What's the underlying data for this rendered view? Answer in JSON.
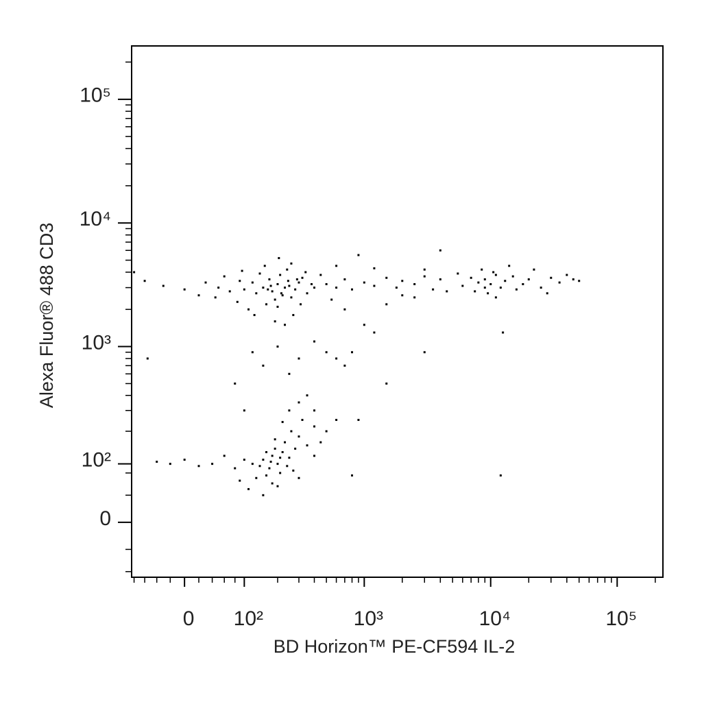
{
  "chart_data": {
    "type": "scatter",
    "xlabel": "BD Horizon™ PE-CF594 IL-2",
    "ylabel": "Alexa Fluor® 488 CD3",
    "xscale": "biexponential",
    "yscale": "biexponential",
    "xlim": [
      -85,
      230000
    ],
    "ylim": [
      -92,
      270000
    ],
    "xticks": [
      0,
      {
        "value": 100,
        "label": "10²"
      },
      {
        "value": 1000,
        "label": "10³"
      },
      {
        "value": 10000,
        "label": "10⁴"
      },
      {
        "value": 100000,
        "label": "10⁵"
      }
    ],
    "yticks": [
      0,
      {
        "value": 100,
        "label": "10²"
      },
      {
        "value": 1000,
        "label": "10³"
      },
      {
        "value": 10000,
        "label": "10⁴"
      },
      {
        "value": 100000,
        "label": "10⁵"
      }
    ],
    "xminorticks": [
      -80,
      -60,
      -40,
      -20,
      20,
      40,
      60,
      80,
      200,
      300,
      400,
      500,
      600,
      700,
      800,
      900,
      2000,
      3000,
      4000,
      5000,
      6000,
      7000,
      8000,
      9000,
      20000,
      30000,
      40000,
      50000,
      60000,
      70000,
      80000,
      90000,
      200000
    ],
    "yminorticks": [
      -80,
      -40,
      40,
      80,
      200,
      300,
      400,
      500,
      600,
      700,
      800,
      900,
      2000,
      3000,
      4000,
      5000,
      6000,
      7000,
      8000,
      9000,
      20000,
      30000,
      40000,
      50000,
      60000,
      70000,
      80000,
      90000,
      200000
    ],
    "color": "#000000",
    "x": [
      150,
      180,
      200,
      220,
      250,
      170,
      130,
      280,
      300,
      190,
      210,
      160,
      240,
      120,
      260,
      140,
      230,
      200,
      175,
      320,
      100,
      90,
      70,
      50,
      30,
      0,
      -30,
      -60,
      20,
      110,
      350,
      380,
      270,
      310,
      155,
      205,
      260,
      95,
      400,
      190,
      230,
      125,
      85,
      60,
      45,
      340,
      290,
      215,
      165,
      245,
      500,
      600,
      700,
      800,
      1000,
      1200,
      1500,
      1800,
      2000,
      2500,
      3000,
      3500,
      4000,
      600,
      900,
      1500,
      2500,
      4000,
      700,
      1200,
      3000,
      2000,
      450,
      550,
      1000,
      8000,
      9000,
      10000,
      11000,
      12000,
      7000,
      6000,
      13000,
      15000,
      18000,
      20000,
      25000,
      30000,
      35000,
      40000,
      45000,
      9500,
      8500,
      11000,
      14000,
      7500,
      10500,
      16000,
      22000,
      28000,
      5500,
      50000,
      12500,
      4500,
      9000,
      120,
      150,
      200,
      250,
      300,
      400,
      500,
      600,
      700,
      800,
      1500,
      3000,
      80,
      100,
      400,
      600,
      900,
      500,
      1200,
      -55,
      150,
      180,
      200,
      170,
      220,
      140,
      250,
      190,
      160,
      210,
      120,
      100,
      80,
      60,
      40,
      20,
      0,
      -20,
      -40,
      230,
      260,
      300,
      280,
      320,
      350,
      400,
      180,
      130,
      110,
      90,
      240,
      270,
      300,
      200,
      150,
      190,
      220,
      250,
      300,
      350,
      400,
      450,
      160,
      175,
      210,
      800,
      12000,
      -80
    ],
    "values": [
      3000,
      2800,
      3200,
      2600,
      3100,
      3500,
      2700,
      2900,
      3300,
      2400,
      3800,
      2200,
      4200,
      3300,
      2500,
      3900,
      3000,
      2100,
      3100,
      3600,
      2900,
      3400,
      2800,
      3000,
      3300,
      2900,
      3100,
      3400,
      2600,
      2000,
      2700,
      3200,
      1800,
      2200,
      4500,
      5200,
      4700,
      4100,
      3000,
      1600,
      1500,
      1800,
      2300,
      3700,
      2500,
      4000,
      3500,
      2700,
      2900,
      3400,
      3200,
      3000,
      3500,
      2900,
      3300,
      3100,
      3600,
      3000,
      3400,
      3200,
      3700,
      2900,
      3500,
      4500,
      5500,
      2200,
      2500,
      6000,
      2000,
      4300,
      4200,
      2600,
      3800,
      2400,
      1500,
      3300,
      3500,
      3200,
      3800,
      3000,
      3600,
      3100,
      3400,
      3700,
      3200,
      3500,
      3000,
      3600,
      3300,
      3800,
      3500,
      2700,
      4200,
      2500,
      4500,
      2800,
      4000,
      2900,
      4200,
      2700,
      3900,
      3400,
      1300,
      2800,
      3000,
      900,
      700,
      1000,
      600,
      800,
      1100,
      900,
      800,
      700,
      900,
      500,
      900,
      500,
      300,
      300,
      250,
      250,
      200,
      1300,
      800,
      110,
      120,
      100,
      90,
      130,
      95,
      115,
      140,
      75,
      80,
      100,
      110,
      90,
      120,
      100,
      95,
      110,
      100,
      105,
      160,
      200,
      180,
      140,
      250,
      150,
      120,
      60,
      70,
      50,
      65,
      95,
      85,
      70,
      55,
      40,
      170,
      240,
      300,
      350,
      400,
      220,
      160,
      130,
      105,
      115,
      75,
      75,
      4000
    ]
  }
}
